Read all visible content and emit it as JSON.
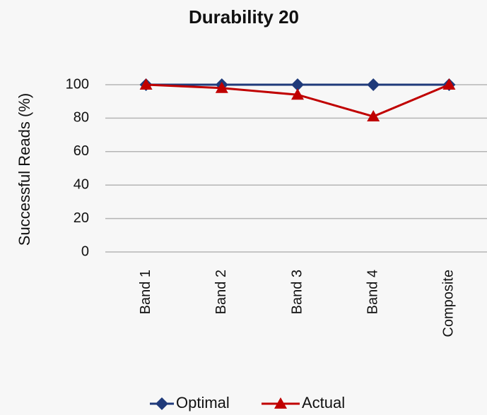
{
  "chart_data": {
    "type": "line",
    "title": "Durability 20",
    "ylabel": "Successful Reads (%)",
    "categories": [
      "Band 1",
      "Band 2",
      "Band 3",
      "Band 4",
      "Composite"
    ],
    "series": [
      {
        "name": "Optimal",
        "color": "#1f3a7a",
        "marker": "diamond",
        "values": [
          100,
          100,
          100,
          100,
          100
        ]
      },
      {
        "name": "Actual",
        "color": "#c00000",
        "marker": "triangle",
        "values": [
          100,
          98,
          94,
          81,
          100
        ]
      }
    ],
    "ylim": [
      0,
      100
    ],
    "yticks": [
      0,
      20,
      40,
      60,
      80,
      100
    ],
    "grid": true,
    "legend": "bottom"
  }
}
